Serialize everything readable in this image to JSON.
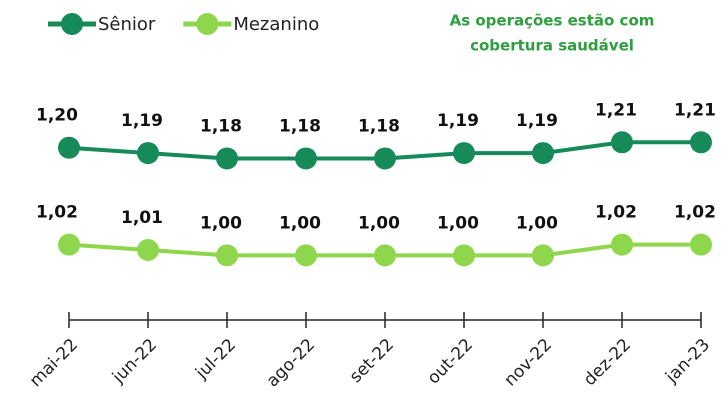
{
  "chart_data": {
    "type": "line",
    "annotation": [
      "As operações estão com",
      "cobertura saudável"
    ],
    "categories": [
      "mai-22",
      "jun-22",
      "jul-22",
      "ago-22",
      "set-22",
      "out-22",
      "nov-22",
      "dez-22",
      "jan-23"
    ],
    "series": [
      {
        "name": "Sênior",
        "color": "#178a5a",
        "values": [
          1.2,
          1.19,
          1.18,
          1.18,
          1.18,
          1.19,
          1.19,
          1.21,
          1.21
        ],
        "value_labels": [
          "1,20",
          "1,19",
          "1,18",
          "1,18",
          "1,18",
          "1,19",
          "1,19",
          "1,21",
          "1,21"
        ]
      },
      {
        "name": "Mezanino",
        "color": "#8ed64b",
        "values": [
          1.02,
          1.01,
          1.0,
          1.0,
          1.0,
          1.0,
          1.0,
          1.02,
          1.02
        ],
        "value_labels": [
          "1,02",
          "1,01",
          "1,00",
          "1,00",
          "1,00",
          "1,00",
          "1,00",
          "1,02",
          "1,02"
        ]
      }
    ],
    "ylim": [
      0.88,
      1.4
    ]
  }
}
